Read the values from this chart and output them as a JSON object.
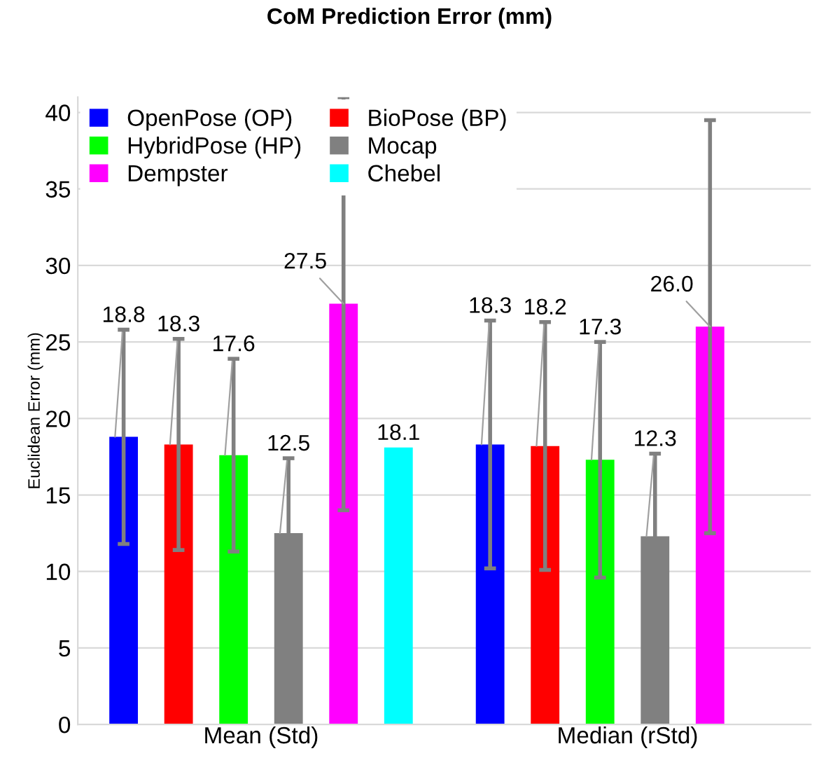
{
  "chart_data": {
    "type": "bar",
    "title": "CoM Prediction Error (mm)",
    "ylabel": "Euclidean Error (mm)",
    "categories": [
      "Mean (Std)",
      "Median (rStd)"
    ],
    "series": [
      {
        "name": "OpenPose (OP)",
        "color": "#0000ff",
        "values": [
          18.8,
          18.3
        ],
        "errors": [
          7.0,
          8.1
        ],
        "value_labels": [
          "18.8",
          "18.3"
        ]
      },
      {
        "name": "BioPose (BP)",
        "color": "#ff0000",
        "values": [
          18.3,
          18.2
        ],
        "errors": [
          6.9,
          8.1
        ],
        "value_labels": [
          "18.3",
          "18.2"
        ]
      },
      {
        "name": "HybridPose (HP)",
        "color": "#00ff00",
        "values": [
          17.6,
          17.3
        ],
        "errors": [
          6.3,
          7.7
        ],
        "value_labels": [
          "17.6",
          "17.3"
        ]
      },
      {
        "name": "Mocap",
        "color": "#808080",
        "values": [
          12.5,
          12.3
        ],
        "errors": [
          4.9,
          5.4
        ],
        "value_labels": [
          "12.5",
          "12.3"
        ]
      },
      {
        "name": "Dempster",
        "color": "#ff00ff",
        "values": [
          27.5,
          26.0
        ],
        "errors": [
          13.5,
          13.5
        ],
        "value_labels": [
          "27.5",
          "26.0"
        ]
      },
      {
        "name": "Chebel",
        "color": "#00ffff",
        "values": [
          18.1,
          null
        ],
        "errors": [
          null,
          null
        ],
        "value_labels": [
          "18.1",
          null
        ]
      }
    ],
    "ylim": [
      0,
      41
    ],
    "yticks": [
      0,
      5,
      10,
      15,
      20,
      25,
      30,
      35,
      40
    ],
    "grid": "y",
    "legend": "top left"
  }
}
